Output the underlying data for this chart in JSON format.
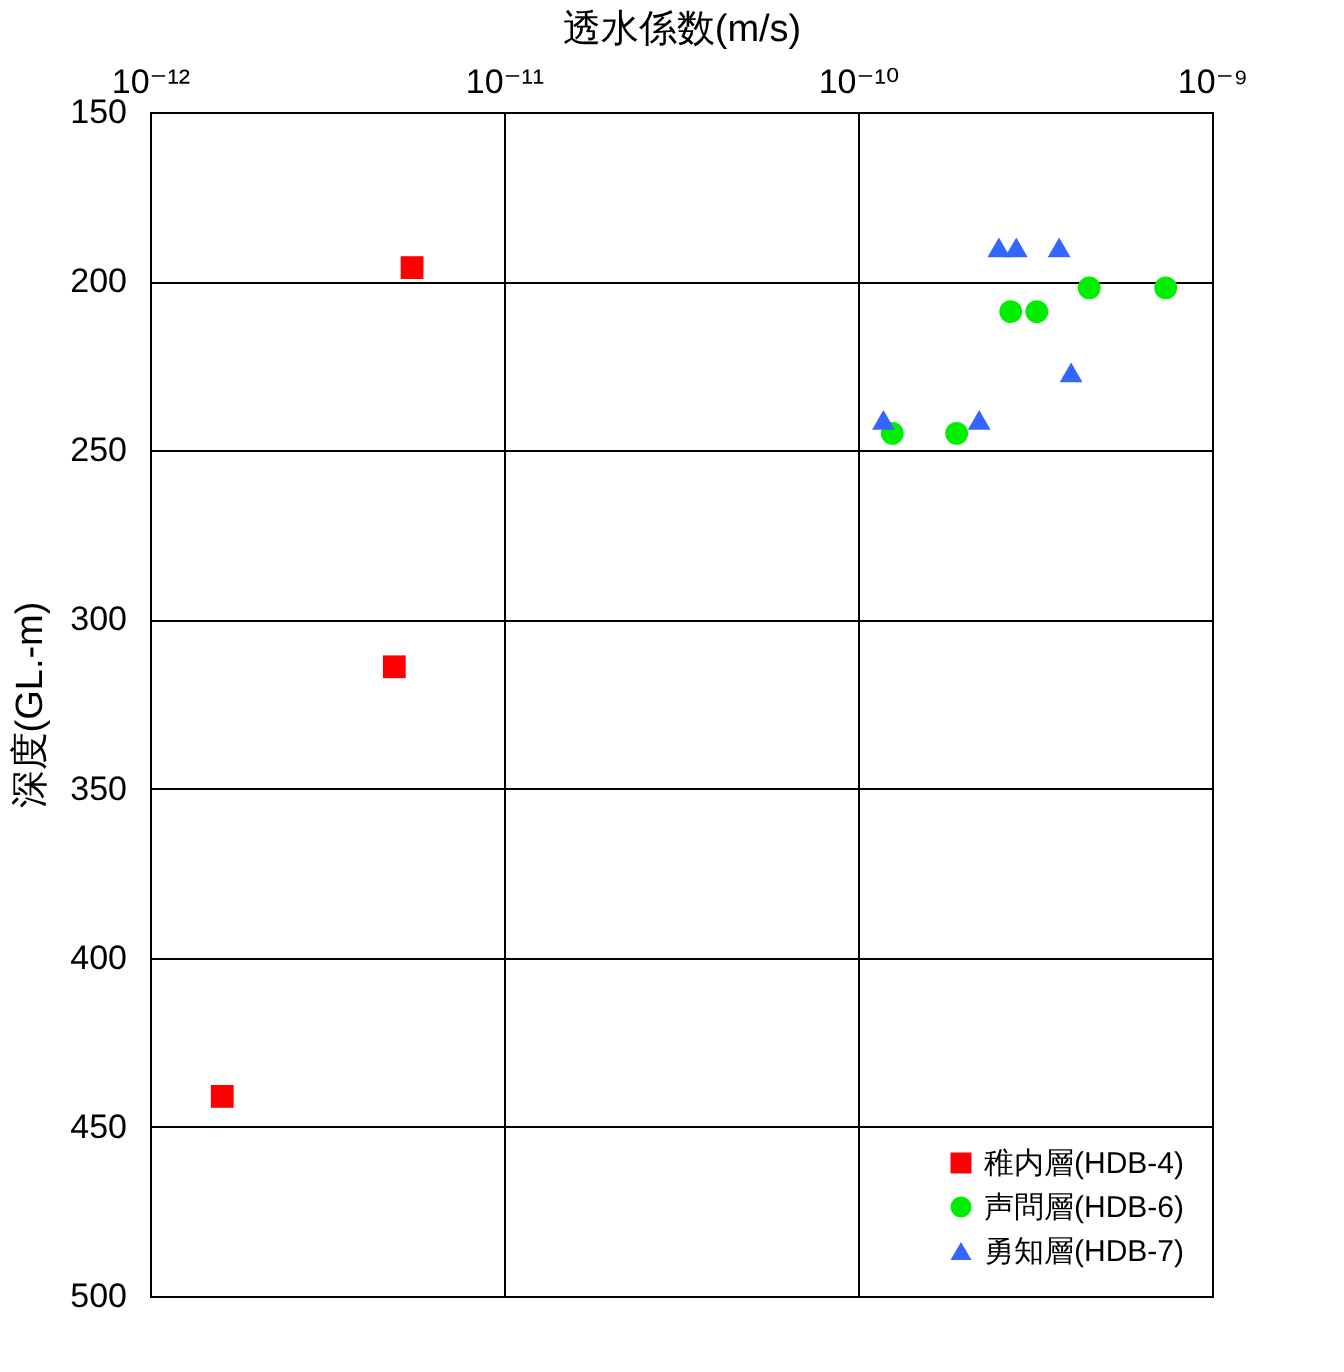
{
  "chart_data": {
    "type": "scatter",
    "xlabel": "透水係数(m/s)",
    "ylabel": "深度(GL.-m)",
    "log": "x",
    "xlim": [
      1e-12,
      1e-09
    ],
    "xticks": [
      {
        "value": 1e-12,
        "label": "10⁻¹²"
      },
      {
        "value": 1e-11,
        "label": "10⁻¹¹"
      },
      {
        "value": 1e-10,
        "label": "10⁻¹⁰"
      },
      {
        "value": 1e-09,
        "label": "10⁻⁹"
      }
    ],
    "ylim": [
      500,
      150
    ],
    "yticks": [
      150,
      200,
      250,
      300,
      350,
      400,
      450,
      500
    ],
    "grid": true,
    "legend": "bottom right",
    "series": [
      {
        "name": "稚内層(HDB-4)",
        "color": "#ff0000",
        "marker": "square",
        "x": [
          5.5e-12,
          4.9e-12,
          1.6e-12
        ],
        "values": [
          196,
          314,
          441
        ]
      },
      {
        "name": "声問層(HDB-6)",
        "color": "#00ee00",
        "marker": "circle",
        "x": [
          1.25e-10,
          1.9e-10,
          2.7e-10,
          3.2e-10,
          4.5e-10,
          7.4e-10
        ],
        "values": [
          245,
          245,
          209,
          209,
          202,
          202
        ]
      },
      {
        "name": "勇知層(HDB-7)",
        "color": "#3366ff",
        "marker": "triangle",
        "x": [
          1.18e-10,
          2.2e-10,
          2.5e-10,
          2.8e-10,
          3.7e-10,
          4e-10
        ],
        "values": [
          241,
          241,
          190,
          190,
          190,
          227
        ]
      }
    ]
  }
}
